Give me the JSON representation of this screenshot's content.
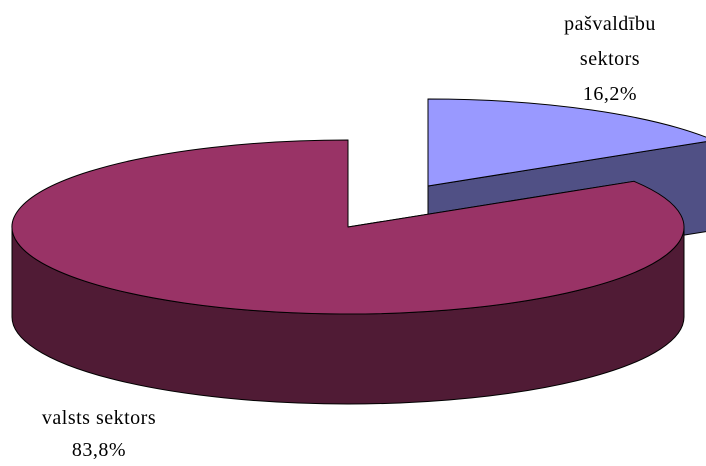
{
  "chart_data": {
    "type": "pie3d",
    "categories": [
      "pašvaldību sektors",
      "valsts sektors"
    ],
    "values": [
      16.2,
      83.8
    ],
    "value_labels": [
      "16,2%",
      "83,8%"
    ],
    "colors": [
      "#9999ff",
      "#993366"
    ]
  }
}
